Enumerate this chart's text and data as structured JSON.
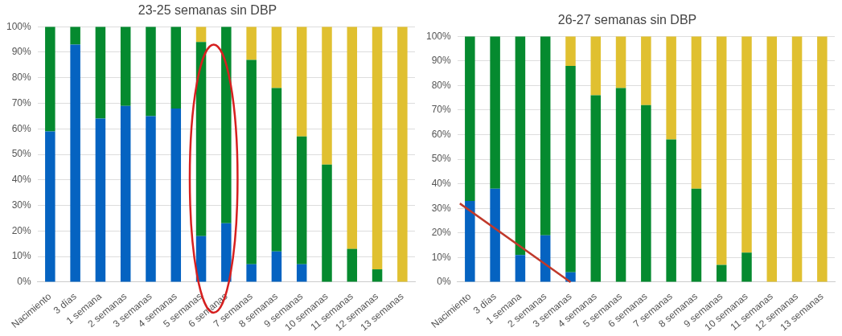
{
  "chart_data": [
    {
      "type": "bar",
      "title": "23-25 semanas sin DBP",
      "stacked": true,
      "categories": [
        "Nacimiento",
        "3 días",
        "1 semana",
        "2 semanas",
        "3 semanas",
        "4 semanas",
        "5 semanas",
        "6 semanas",
        "7 semanas",
        "8 semanas",
        "9 semanas",
        "10 semanas",
        "11 semanas",
        "12 semanas",
        "13 semanas"
      ],
      "series": [
        {
          "color": "#0563c1",
          "values": [
            59,
            93,
            64,
            69,
            65,
            68,
            18,
            23,
            7,
            12,
            7,
            0,
            0,
            0,
            0
          ]
        },
        {
          "color": "#058a2f",
          "values": [
            41,
            7,
            36,
            31,
            35,
            32,
            76,
            77,
            80,
            64,
            50,
            46,
            13,
            5,
            0
          ]
        },
        {
          "color": "#e0c030",
          "values": [
            0,
            0,
            0,
            0,
            0,
            0,
            6,
            0,
            13,
            24,
            43,
            54,
            87,
            95,
            100
          ]
        }
      ],
      "ylim": [
        0,
        100
      ],
      "yticks": [
        {
          "value": 0,
          "label": "0%"
        },
        {
          "value": 10,
          "label": "10%"
        },
        {
          "value": 20,
          "label": "20%"
        },
        {
          "value": 30,
          "label": "30%"
        },
        {
          "value": 40,
          "label": "40%"
        },
        {
          "value": 50,
          "label": "50%"
        },
        {
          "value": 60,
          "label": "60%"
        },
        {
          "value": 70,
          "label": "70%"
        },
        {
          "value": 80,
          "label": "80%"
        },
        {
          "value": 90,
          "label": "90%"
        },
        {
          "value": 100,
          "label": "100%"
        }
      ],
      "grid": "y",
      "legend": false
    },
    {
      "type": "bar",
      "title": "26-27 semanas sin DBP",
      "stacked": true,
      "categories": [
        "Nacimiento",
        "3 días",
        "1 semana",
        "2 semanas",
        "3 semanas",
        "4 semanas",
        "5 semanas",
        "6 semanas",
        "7 semanas",
        "8 semanas",
        "9 semanas",
        "10 semanas",
        "11 semanas",
        "12 semanas",
        "13 semanas"
      ],
      "series": [
        {
          "color": "#0563c1",
          "values": [
            33,
            38,
            11,
            19,
            4,
            0,
            0,
            0,
            0,
            0,
            0,
            0,
            0,
            0,
            0
          ]
        },
        {
          "color": "#058a2f",
          "values": [
            67,
            62,
            89,
            81,
            84,
            76,
            79,
            72,
            58,
            38,
            7,
            12,
            0,
            0,
            0
          ]
        },
        {
          "color": "#e0c030",
          "values": [
            0,
            0,
            0,
            0,
            12,
            24,
            21,
            28,
            42,
            62,
            93,
            88,
            100,
            100,
            100
          ]
        }
      ],
      "ylim": [
        0,
        100
      ],
      "yticks": [
        {
          "value": 0,
          "label": "0%"
        },
        {
          "value": 10,
          "label": "10%"
        },
        {
          "value": 20,
          "label": "20%"
        },
        {
          "value": 30,
          "label": "30%"
        },
        {
          "value": 40,
          "label": "40%"
        },
        {
          "value": 50,
          "label": "50%"
        },
        {
          "value": 60,
          "label": "60%"
        },
        {
          "value": 70,
          "label": "70%"
        },
        {
          "value": 80,
          "label": "80%"
        },
        {
          "value": 90,
          "label": "90%"
        },
        {
          "value": 100,
          "label": "100%"
        }
      ],
      "grid": "y",
      "legend": false
    }
  ]
}
